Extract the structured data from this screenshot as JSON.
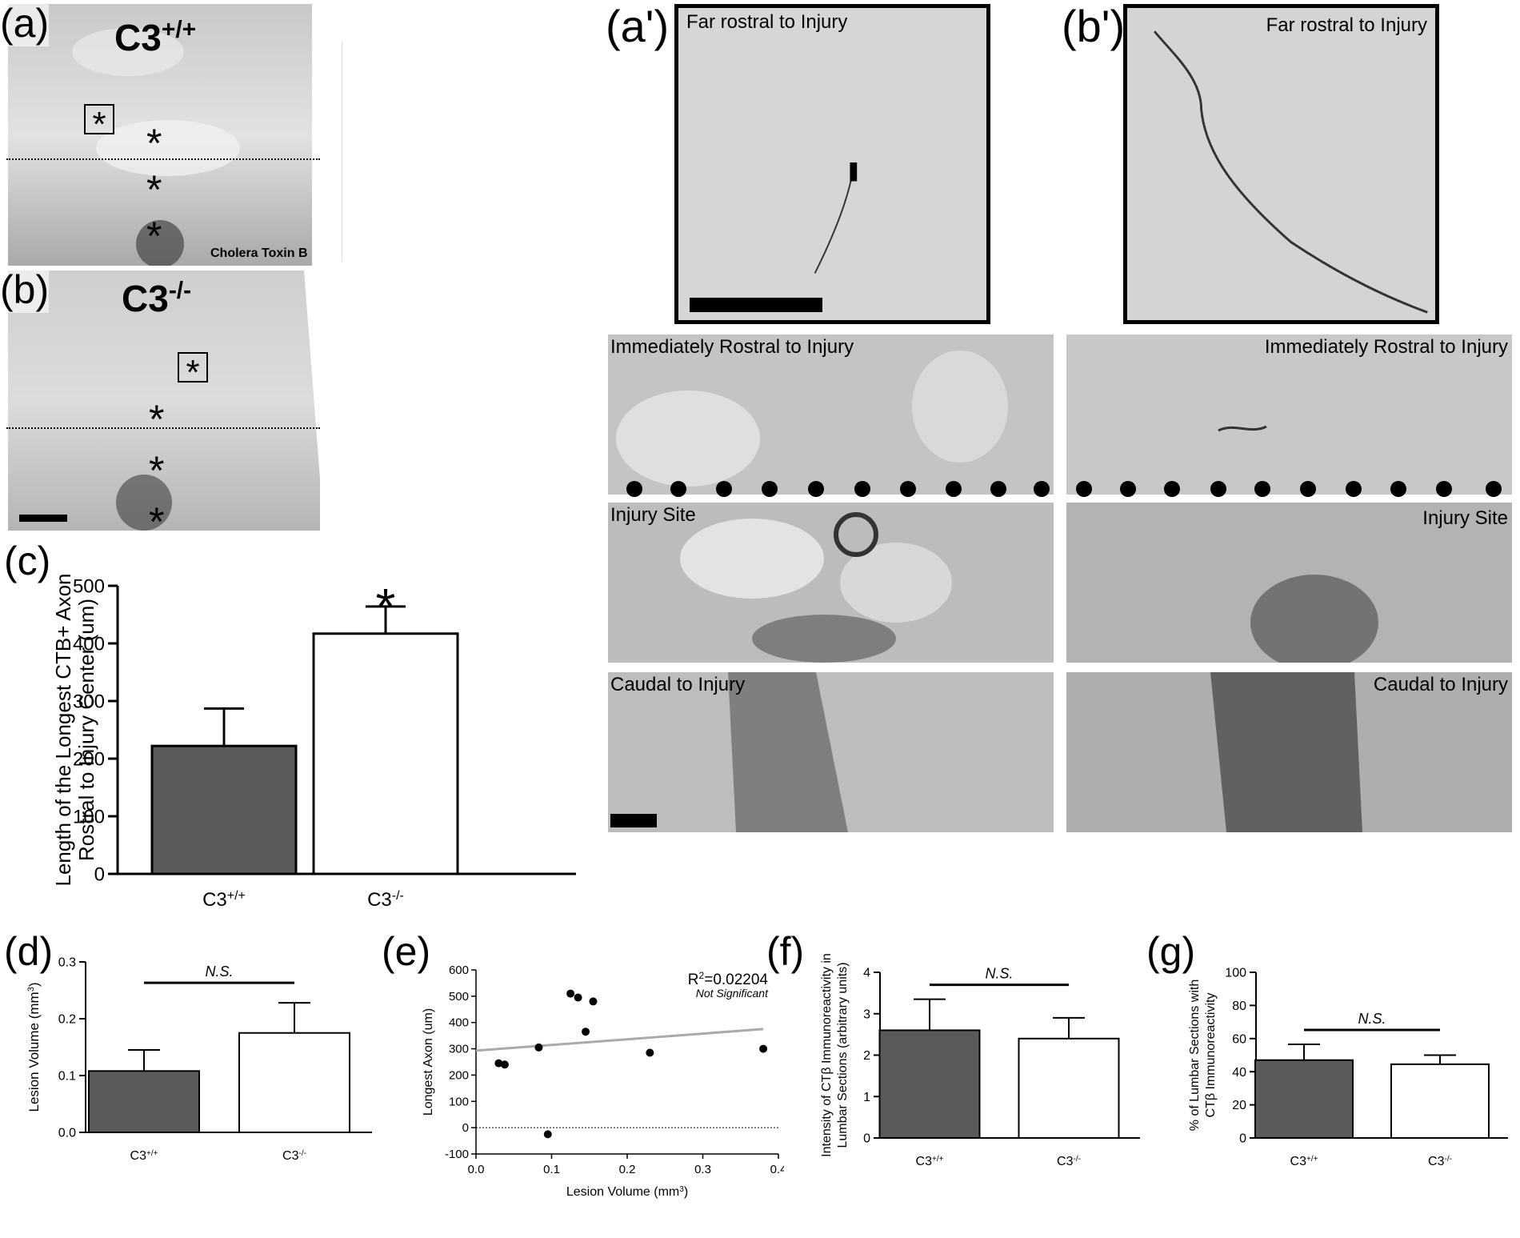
{
  "panel_letters": {
    "a": "(a)",
    "b": "(b)",
    "c": "(c)",
    "d": "(d)",
    "e": "(e)",
    "f": "(f)",
    "g": "(g)",
    "a_prime": "(a')",
    "b_prime": "(b')"
  },
  "micrographs": {
    "a_genotype": "C3",
    "a_sup": "+/+",
    "b_genotype": "C3",
    "b_sup": "-/-",
    "a_stain": "Cholera Toxin B"
  },
  "strip_captions": {
    "far_rostral": "Far rostral to Injury",
    "immediately_rostral": "Immediately Rostral to Injury",
    "injury_site": "Injury Site",
    "caudal": "Caudal to Injury"
  },
  "colors": {
    "wt_bar": "#5a5a5a",
    "ko_bar": "#ffffff",
    "regression_line": "#aaaaaa"
  },
  "chart_data": [
    {
      "panel": "c",
      "type": "bar",
      "categories": [
        "C3+/+",
        "C3-/-"
      ],
      "cat_base": [
        "C3",
        "C3"
      ],
      "cat_sup": [
        "+/+",
        "-/-"
      ],
      "values": [
        222,
        417
      ],
      "errors": [
        65,
        47
      ],
      "ylabel_line1": "Length of the Longest CTB+ Axon",
      "ylabel_line2": "Rostral to Injury Center (um)",
      "ylim": [
        0,
        500
      ],
      "yticks": [
        "0",
        "100",
        "200",
        "300",
        "400",
        "500"
      ],
      "significance": "*"
    },
    {
      "panel": "d",
      "type": "bar",
      "categories": [
        "C3+/+",
        "C3-/-"
      ],
      "cat_base": [
        "C3",
        "C3"
      ],
      "cat_sup": [
        "+/+",
        "-/-"
      ],
      "values": [
        0.108,
        0.175
      ],
      "errors": [
        0.037,
        0.053
      ],
      "ylabel": "Lesion Volume (mm",
      "ylabel_sup": "3",
      "ylabel_end": ")",
      "ylim": [
        0,
        0.3
      ],
      "yticks": [
        "0.0",
        "0.1",
        "0.2",
        "0.3"
      ],
      "significance": "N.S."
    },
    {
      "panel": "e",
      "type": "scatter",
      "x": [
        0.03,
        0.038,
        0.083,
        0.095,
        0.125,
        0.135,
        0.145,
        0.155,
        0.23,
        0.38
      ],
      "y": [
        245,
        240,
        305,
        -25,
        510,
        495,
        365,
        480,
        285,
        300
      ],
      "fit_line": {
        "x": [
          0.0,
          0.38
        ],
        "y": [
          293,
          375
        ]
      },
      "xlabel": "Lesion Volume (mm",
      "xlabel_sup": "3",
      "xlabel_end": ")",
      "ylabel": "Longest Axon (um)",
      "xlim": [
        0,
        0.4
      ],
      "ylim": [
        -100,
        600
      ],
      "xticks": [
        "0.0",
        "0.1",
        "0.2",
        "0.3",
        "0.4"
      ],
      "yticks": [
        "-100",
        "0",
        "100",
        "200",
        "300",
        "400",
        "500",
        "600"
      ],
      "annotation_r2": "R",
      "annotation_r2_sup": "2",
      "annotation_r2_value": "=0.02204",
      "annotation_ns": "Not Significant"
    },
    {
      "panel": "f",
      "type": "bar",
      "categories": [
        "C3+/+",
        "C3-/-"
      ],
      "cat_base": [
        "C3",
        "C3"
      ],
      "cat_sup": [
        "+/+",
        "-/-"
      ],
      "values": [
        2.6,
        2.4
      ],
      "errors": [
        0.75,
        0.5
      ],
      "ylabel_line1": "Intensity of CTβ Immunoreactivity in",
      "ylabel_line2": "Lumbar Sections (arbitrary units)",
      "ylim": [
        0,
        4
      ],
      "yticks": [
        "0",
        "1",
        "2",
        "3",
        "4"
      ],
      "significance": "N.S."
    },
    {
      "panel": "g",
      "type": "bar",
      "categories": [
        "C3+/+",
        "C3-/-"
      ],
      "cat_base": [
        "C3",
        "C3"
      ],
      "cat_sup": [
        "+/+",
        "-/-"
      ],
      "values": [
        47,
        44.5
      ],
      "errors": [
        9.5,
        5.5
      ],
      "ylabel_line1": "% of Lumbar Sections with",
      "ylabel_line2": "CTβ Immunoreactivity",
      "ylim": [
        0,
        100
      ],
      "yticks": [
        "0",
        "20",
        "40",
        "60",
        "80",
        "100"
      ],
      "significance": "N.S."
    }
  ]
}
